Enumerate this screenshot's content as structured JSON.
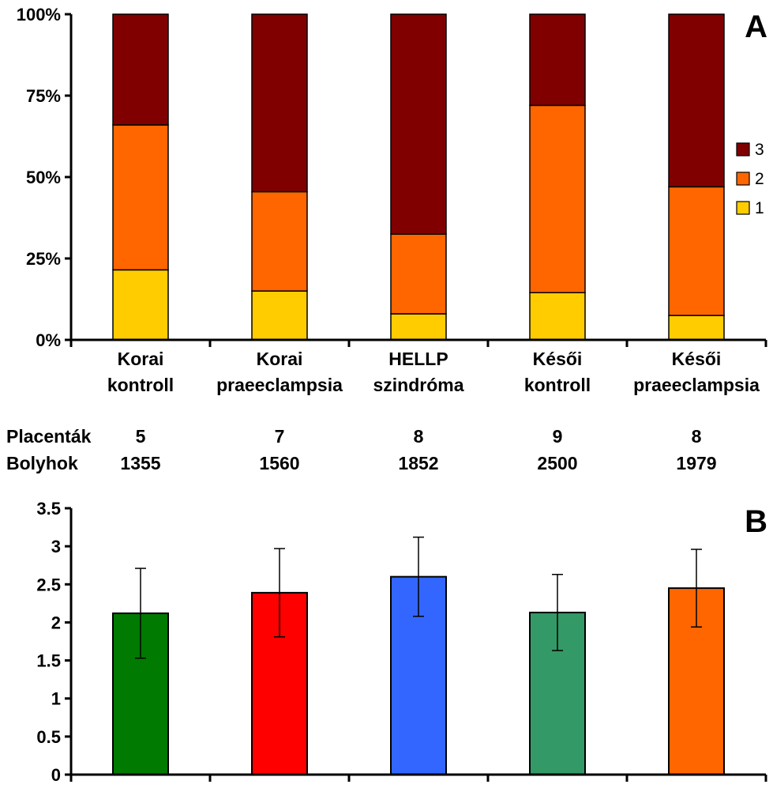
{
  "chart_data": [
    {
      "type": "bar",
      "stacked": true,
      "panel_label": "A",
      "categories": [
        [
          "Korai",
          "kontroll"
        ],
        [
          "Korai",
          "praeeclampsia"
        ],
        [
          "HELLP",
          "szindróma"
        ],
        [
          "Késői",
          "kontroll"
        ],
        [
          "Késői",
          "praeeclampsia"
        ]
      ],
      "series": [
        {
          "name": "1",
          "color": "#FFCC00",
          "values": [
            21.5,
            15,
            8,
            14.5,
            7.5
          ]
        },
        {
          "name": "2",
          "color": "#FF6600",
          "values": [
            44.5,
            30.5,
            24.5,
            57.5,
            39.5
          ]
        },
        {
          "name": "3",
          "color": "#800000",
          "values": [
            34,
            54.5,
            67.5,
            28,
            53
          ]
        }
      ],
      "legend_order": [
        "3",
        "2",
        "1"
      ],
      "yticks": [
        "0%",
        "25%",
        "50%",
        "75%",
        "100%"
      ],
      "ylim": [
        0,
        100
      ]
    },
    {
      "type": "bar",
      "panel_label": "B",
      "values": [
        2.12,
        2.39,
        2.6,
        2.13,
        2.45
      ],
      "errors": [
        0.59,
        0.58,
        0.52,
        0.5,
        0.51
      ],
      "colors": [
        "#007A00",
        "#FF0000",
        "#3366FF",
        "#339966",
        "#FF6600"
      ],
      "yticks": [
        "0",
        "0.5",
        "1",
        "1.5",
        "2",
        "2.5",
        "3",
        "3.5"
      ],
      "ylim": [
        0,
        3.5
      ]
    }
  ],
  "counts": {
    "rows": [
      {
        "label": "Placenták",
        "values": [
          "5",
          "7",
          "8",
          "9",
          "8"
        ]
      },
      {
        "label": "Bolyhok",
        "values": [
          "1355",
          "1560",
          "1852",
          "2500",
          "1979"
        ]
      }
    ]
  }
}
